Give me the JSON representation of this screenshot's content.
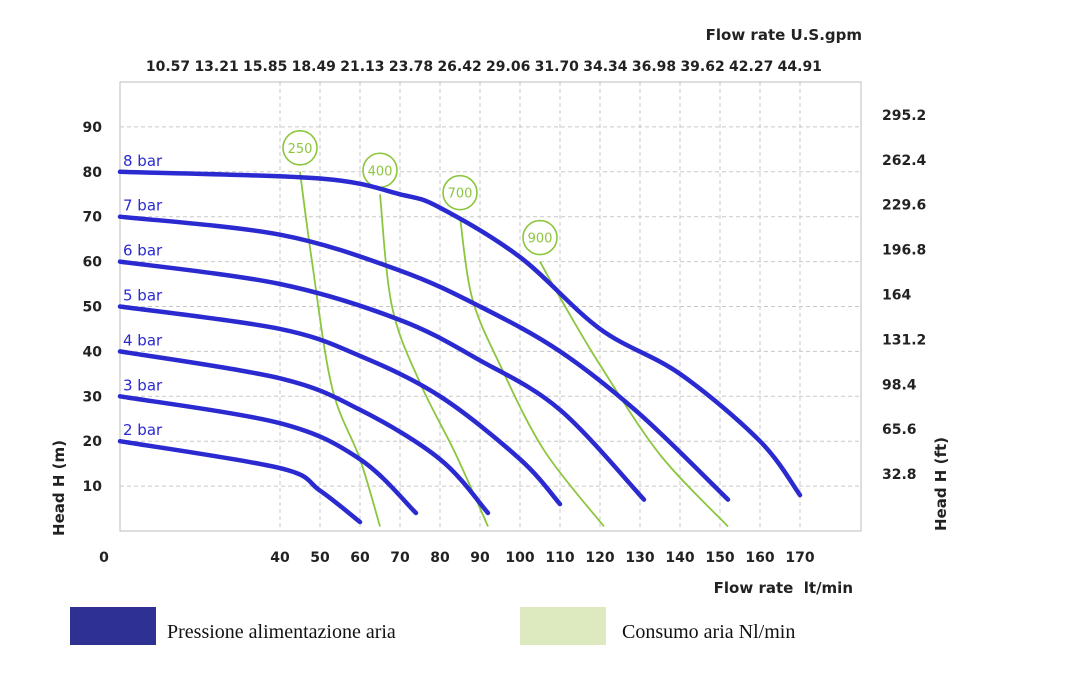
{
  "chart_data": {
    "type": "line",
    "x_bottom": {
      "label": "Flow rate  lt/min",
      "ticks": [
        "0",
        "40",
        "50",
        "60",
        "70",
        "80",
        "90",
        "100",
        "110",
        "120",
        "130",
        "140",
        "150",
        "160",
        "170"
      ]
    },
    "x_top": {
      "label": "Flow rate U.S.gpm",
      "ticks": [
        "10.57",
        "13.21",
        "15.85",
        "18.49",
        "21.13",
        "23.78",
        "26.42",
        "29.06",
        "31.70",
        "34.34",
        "36.98",
        "39.62",
        "42.27",
        "44.91"
      ]
    },
    "y_left": {
      "label": "Head H (m)",
      "ticks": [
        "10",
        "20",
        "30",
        "40",
        "50",
        "60",
        "70",
        "80",
        "90"
      ],
      "ylim": [
        0,
        100
      ]
    },
    "y_right": {
      "label": "Head H (ft)",
      "ticks": [
        "32.8",
        "65.6",
        "98.4",
        "131.2",
        "164",
        "196.8",
        "229.6",
        "262.4",
        "295.2"
      ]
    },
    "grid": true,
    "pressure_series": [
      {
        "name": "8 bar",
        "color": "#2a2ad0",
        "x": [
          0,
          50,
          70,
          80,
          100,
          120,
          140,
          160,
          170
        ],
        "y": [
          80,
          78.5,
          75,
          72,
          61,
          45,
          35,
          20,
          8
        ]
      },
      {
        "name": "7 bar",
        "color": "#2a2ad0",
        "x": [
          0,
          40,
          70,
          90,
          110,
          130,
          152
        ],
        "y": [
          70,
          66,
          58,
          50,
          40,
          26,
          7
        ]
      },
      {
        "name": "6 bar",
        "color": "#2a2ad0",
        "x": [
          0,
          40,
          70,
          90,
          110,
          131
        ],
        "y": [
          60,
          55,
          47,
          38,
          27,
          7
        ]
      },
      {
        "name": "5 bar",
        "color": "#2a2ad0",
        "x": [
          0,
          40,
          60,
          80,
          100,
          110
        ],
        "y": [
          50,
          45,
          39,
          30,
          16,
          6
        ]
      },
      {
        "name": "4 bar",
        "color": "#2a2ad0",
        "x": [
          0,
          40,
          60,
          80,
          92
        ],
        "y": [
          40,
          34,
          27,
          16,
          4
        ]
      },
      {
        "name": "3 bar",
        "color": "#2a2ad0",
        "x": [
          0,
          40,
          60,
          74
        ],
        "y": [
          30,
          24,
          16,
          4
        ]
      },
      {
        "name": "2 bar",
        "color": "#2a2ad0",
        "x": [
          0,
          40,
          50,
          60
        ],
        "y": [
          20,
          14,
          9,
          2
        ]
      }
    ],
    "air_consumption_series": [
      {
        "name": "250",
        "color": "#8cc63f",
        "x": [
          45,
          48,
          53,
          60,
          65
        ],
        "y": [
          80,
          60,
          32,
          16,
          1
        ]
      },
      {
        "name": "400",
        "color": "#8cc63f",
        "x": [
          65,
          68,
          75,
          84,
          92
        ],
        "y": [
          75,
          50,
          33,
          17,
          1
        ]
      },
      {
        "name": "700",
        "color": "#8cc63f",
        "x": [
          85,
          88,
          95,
          106,
          121
        ],
        "y": [
          70,
          52,
          37,
          18,
          1
        ]
      },
      {
        "name": "900",
        "color": "#8cc63f",
        "x": [
          105,
          110,
          120,
          135,
          152
        ],
        "y": [
          60,
          52,
          37,
          17,
          1
        ]
      }
    ]
  },
  "legend": [
    {
      "label": "Pressione alimentazione aria",
      "color": "#2e3192"
    },
    {
      "label": "Consumo aria Nl/min",
      "color": "#dde9bf"
    }
  ]
}
